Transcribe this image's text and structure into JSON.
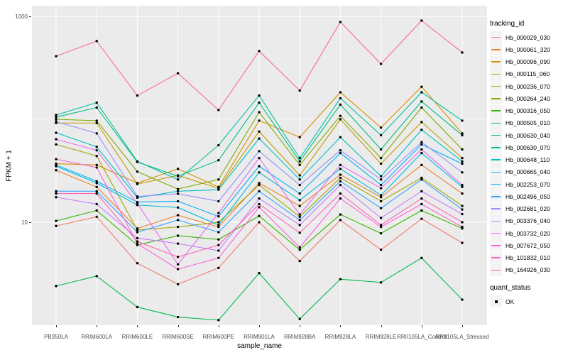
{
  "chart_data": {
    "type": "line",
    "title": "",
    "xlabel": "sample_name",
    "ylabel": "FPKM + 1",
    "yscale": "log10",
    "grid": true,
    "legend_position": "right",
    "legend_title": "tracking_id",
    "panel_bg": "#EBEBEB",
    "gridline_color": "#FFFFFF",
    "point_color": "#000000",
    "ylim": [
      1,
      1280
    ],
    "y_ticks": [
      {
        "label": "1000",
        "value": 1000
      },
      {
        "label": "10",
        "value": 10
      }
    ],
    "y_minor_gridlines": [
      100,
      1
    ],
    "x_categories": [
      "PB350LA",
      "RRIM600LA",
      "RRIM600LE",
      "RRIM600SE",
      "RRIM600PE",
      "RRIM901LA",
      "RRIM928BA",
      "RRIM928LA",
      "RRIM928LE",
      "RRII105LA_Control",
      "RRII105LA_Stressed"
    ],
    "series": [
      {
        "name": "Hb_000029_030",
        "color": "#F8766D",
        "values": [
          9.2,
          11.3,
          4.0,
          2.5,
          3.6,
          10.0,
          4.2,
          10.5,
          5.4,
          10.8,
          6.3
        ]
      },
      {
        "name": "Hb_000061_320",
        "color": "#EA8331",
        "values": [
          32,
          22,
          8.7,
          11.7,
          9.0,
          24,
          14.4,
          29,
          17.5,
          36,
          19
        ]
      },
      {
        "name": "Hb_000096_090",
        "color": "#D89000",
        "values": [
          37,
          36,
          24,
          33,
          22,
          97,
          67,
          183,
          83,
          207,
          73
        ]
      },
      {
        "name": "Hb_000115_060",
        "color": "#C09B00",
        "values": [
          92,
          92,
          23.5,
          28.5,
          21.4,
          76,
          28.5,
          100,
          37,
          94,
          42
        ]
      },
      {
        "name": "Hb_000236_070",
        "color": "#A3A500",
        "values": [
          57,
          44,
          8.4,
          9.0,
          10.0,
          23,
          11.3,
          27,
          16,
          27,
          14.4
        ]
      },
      {
        "name": "Hb_000264_240",
        "color": "#7CAE00",
        "values": [
          100,
          97,
          31,
          21,
          26,
          117,
          36,
          108,
          42,
          130,
          51
        ]
      },
      {
        "name": "Hb_000316_050",
        "color": "#39B600",
        "values": [
          10.3,
          13,
          6.0,
          7.4,
          6.8,
          11.5,
          5.4,
          11.9,
          7.8,
          13,
          8.7
        ]
      },
      {
        "name": "Hb_000505_010",
        "color": "#00BB4E",
        "values": [
          2.4,
          3.0,
          1.5,
          1.2,
          1.12,
          3.2,
          1.15,
          2.8,
          2.6,
          4.5,
          1.77
        ]
      },
      {
        "name": "Hb_000630_040",
        "color": "#00BF7D",
        "values": [
          105,
          130,
          38.5,
          28,
          40,
          145,
          39,
          139,
          51,
          149,
          70
        ]
      },
      {
        "name": "Hb_000630_070",
        "color": "#00C1A3",
        "values": [
          110,
          145,
          39,
          26,
          56,
          170,
          42,
          160,
          70,
          183,
          97
        ]
      },
      {
        "name": "Hb_000648_110",
        "color": "#00BFC4",
        "values": [
          74,
          54,
          17.3,
          20,
          20.7,
          65,
          26,
          67,
          28,
          79,
          39
        ]
      },
      {
        "name": "Hb_000665_040",
        "color": "#00BAE0",
        "values": [
          35,
          24,
          14.7,
          13.9,
          9.4,
          30.5,
          16.4,
          33,
          18.3,
          47,
          22
        ]
      },
      {
        "name": "Hb_002253_070",
        "color": "#00B0F6",
        "values": [
          36,
          25,
          15.7,
          16,
          11.4,
          35,
          19,
          47,
          23,
          57,
          37
        ]
      },
      {
        "name": "Hb_002496_050",
        "color": "#35A2FF",
        "values": [
          20,
          20,
          8.0,
          10.5,
          8.0,
          20,
          10.5,
          25,
          13.7,
          26,
          13.3
        ]
      },
      {
        "name": "Hb_002681_020",
        "color": "#9590FF",
        "values": [
          95,
          73,
          17.8,
          18.9,
          16,
          49,
          23,
          50,
          26,
          60,
          30.5
        ]
      },
      {
        "name": "Hb_003376_040",
        "color": "#C77CFF",
        "values": [
          17.5,
          15,
          7.0,
          6.2,
          5.3,
          17,
          9.4,
          23,
          11,
          20,
          12
        ]
      },
      {
        "name": "Hb_003732_020",
        "color": "#E76BF3",
        "values": [
          64,
          50,
          15.2,
          3.9,
          12.3,
          42,
          11.9,
          36,
          21.4,
          51,
          23
        ]
      },
      {
        "name": "Hb_007672_050",
        "color": "#FA62DB",
        "values": [
          41,
          34,
          6.2,
          3.5,
          4.5,
          14,
          5.7,
          17,
          9.0,
          15,
          9
        ]
      },
      {
        "name": "Hb_101832_010",
        "color": "#FF62BC",
        "values": [
          19,
          19,
          6.5,
          4.6,
          6.0,
          15,
          7.9,
          19,
          9.4,
          17,
          10
        ]
      },
      {
        "name": "Hb_164926_030",
        "color": "#FF6A98",
        "values": [
          410,
          575,
          170,
          280,
          123,
          460,
          190,
          880,
          345,
          910,
          445
        ]
      }
    ],
    "quant_status": {
      "title": "quant_status",
      "items": [
        {
          "label": "OK",
          "marker": "square",
          "marker_color": "#000000"
        }
      ]
    }
  }
}
